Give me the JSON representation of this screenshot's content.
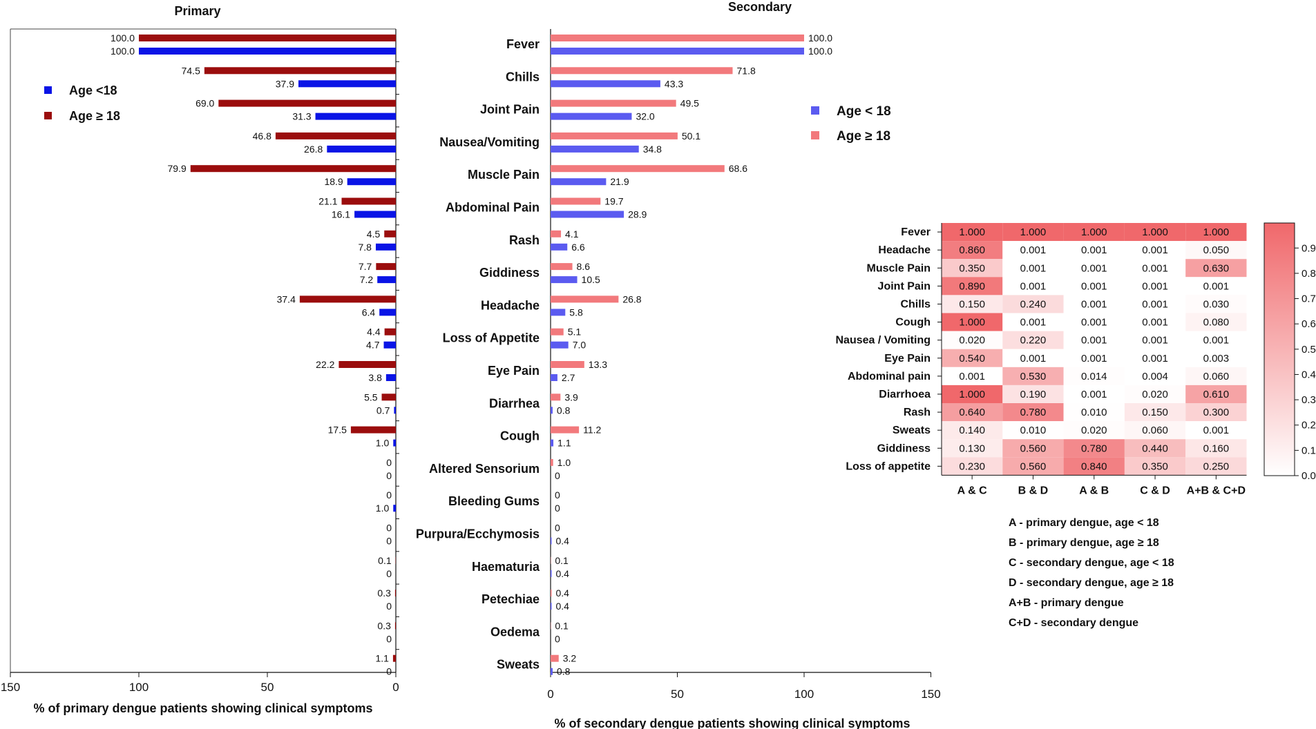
{
  "chart_data": [
    {
      "type": "bar",
      "title": "Primary",
      "xlabel": "% of primary dengue patients showing clinical symptoms",
      "orientation": "horizontal-reversed",
      "xlim": [
        0,
        150
      ],
      "ticks": [
        "150",
        "100",
        "50",
        "0"
      ],
      "legend": [
        {
          "name": "Age <18",
          "color": "#0a14e6"
        },
        {
          "name": "Age ≥ 18",
          "color": "#9b0d0d"
        }
      ],
      "categories": [
        "Fever",
        "Chills",
        "Joint Pain",
        "Nausea/Vomiting",
        "Muscle Pain",
        "Abdominal Pain",
        "Rash",
        "Giddiness",
        "Headache",
        "Loss of Appetite",
        "Eye Pain",
        "Diarrhea",
        "Cough",
        "Altered Sensorium",
        "Bleeding Gums",
        "Purpura/Ecchymosis",
        "Haematuria",
        "Petechiae",
        "Oedema",
        "Sweats"
      ],
      "series": [
        {
          "name": "Age ≥ 18",
          "values": [
            100.0,
            74.5,
            69.0,
            46.8,
            79.9,
            21.1,
            4.5,
            7.7,
            37.4,
            4.4,
            22.2,
            5.5,
            17.5,
            0,
            0,
            0,
            0.1,
            0.3,
            0.3,
            1.1
          ],
          "labels": [
            "100.0",
            "74.5",
            "69.0",
            "46.8",
            "79.9",
            "21.1",
            "4.5",
            "7.7",
            "37.4",
            "4.4",
            "22.2",
            "5.5",
            "17.5",
            "0",
            "0",
            "0",
            "0.1",
            "0.3",
            "0.3",
            "1.1"
          ]
        },
        {
          "name": "Age <18",
          "values": [
            100.0,
            37.9,
            31.3,
            26.8,
            18.9,
            16.1,
            7.8,
            7.2,
            6.4,
            4.7,
            3.8,
            0.7,
            1.0,
            0,
            1.0,
            0,
            0,
            0,
            0,
            0
          ],
          "labels": [
            "100.0",
            "37.9",
            "31.3",
            "26.8",
            "18.9",
            "16.1",
            "7.8",
            "7.2",
            "6.4",
            "4.7",
            "3.8",
            "0.7",
            "1.0",
            "0",
            "1.0",
            "0",
            "0",
            "0",
            "0",
            "0"
          ]
        }
      ]
    },
    {
      "type": "bar",
      "title": "Secondary",
      "xlabel": "% of secondary dengue patients showing clinical symptoms",
      "orientation": "horizontal",
      "xlim": [
        0,
        150
      ],
      "ticks": [
        "0",
        "50",
        "100",
        "150"
      ],
      "legend": [
        {
          "name": "Age < 18",
          "color": "#5b5bf0"
        },
        {
          "name": "Age ≥ 18",
          "color": "#f2797c"
        }
      ],
      "categories": [
        "Fever",
        "Chills",
        "Joint Pain",
        "Nausea/Vomiting",
        "Muscle Pain",
        "Abdominal Pain",
        "Rash",
        "Giddiness",
        "Headache",
        "Loss of Appetite",
        "Eye Pain",
        "Diarrhea",
        "Cough",
        "Altered Sensorium",
        "Bleeding Gums",
        "Purpura/Ecchymosis",
        "Haematuria",
        "Petechiae",
        "Oedema",
        "Sweats"
      ],
      "series": [
        {
          "name": "Age ≥ 18",
          "values": [
            100.0,
            71.8,
            49.5,
            50.1,
            68.6,
            19.7,
            4.1,
            8.6,
            26.8,
            5.1,
            13.3,
            3.9,
            11.2,
            1.0,
            0,
            0,
            0.1,
            0.4,
            0.1,
            3.2
          ],
          "labels": [
            "100.0",
            "71.8",
            "49.5",
            "50.1",
            "68.6",
            "19.7",
            "4.1",
            "8.6",
            "26.8",
            "5.1",
            "13.3",
            "3.9",
            "11.2",
            "1.0",
            "0",
            "0",
            "0.1",
            "0.4",
            "0.1",
            "3.2"
          ]
        },
        {
          "name": "Age < 18",
          "values": [
            100.0,
            43.3,
            32.0,
            34.8,
            21.9,
            28.9,
            6.6,
            10.5,
            5.8,
            7.0,
            2.7,
            0.8,
            1.1,
            0,
            0,
            0.4,
            0.4,
            0.4,
            0,
            0.8
          ],
          "labels": [
            "100.0",
            "43.3",
            "32.0",
            "34.8",
            "21.9",
            "28.9",
            "6.6",
            "10.5",
            "5.8",
            "7.0",
            "2.7",
            "0.8",
            "1.1",
            "0",
            "0",
            "0.4",
            "0.4",
            "0.4",
            "0",
            "0.8"
          ]
        }
      ]
    },
    {
      "type": "heatmap",
      "rows": [
        "Fever",
        "Headache",
        "Muscle Pain",
        "Joint Pain",
        "Chills",
        "Cough",
        "Nausea / Vomiting",
        "Eye Pain",
        "Abdominal pain",
        "Diarrhoea",
        "Rash",
        "Sweats",
        "Giddiness",
        "Loss of appetite"
      ],
      "columns": [
        "A & C",
        "B & D",
        "A & B",
        "C & D",
        "A+B & C+D"
      ],
      "values": [
        [
          "1.000",
          "1.000",
          "1.000",
          "1.000",
          "1.000"
        ],
        [
          "0.860",
          "0.001",
          "0.001",
          "0.001",
          "0.050"
        ],
        [
          "0.350",
          "0.001",
          "0.001",
          "0.001",
          "0.630"
        ],
        [
          "0.890",
          "0.001",
          "0.001",
          "0.001",
          "0.001"
        ],
        [
          "0.150",
          "0.240",
          "0.001",
          "0.001",
          "0.030"
        ],
        [
          "1.000",
          "0.001",
          "0.001",
          "0.001",
          "0.080"
        ],
        [
          "0.020",
          "0.220",
          "0.001",
          "0.001",
          "0.001"
        ],
        [
          "0.540",
          "0.001",
          "0.001",
          "0.001",
          "0.003"
        ],
        [
          "0.001",
          "0.530",
          "0.014",
          "0.004",
          "0.060"
        ],
        [
          "1.000",
          "0.190",
          "0.001",
          "0.020",
          "0.610"
        ],
        [
          "0.640",
          "0.780",
          "0.010",
          "0.150",
          "0.300"
        ],
        [
          "0.140",
          "0.010",
          "0.020",
          "0.060",
          "0.001"
        ],
        [
          "0.130",
          "0.560",
          "0.780",
          "0.440",
          "0.160"
        ],
        [
          "0.230",
          "0.560",
          "0.840",
          "0.350",
          "0.250"
        ]
      ],
      "scale_min": 0.001,
      "scale_max": 1.0,
      "scale_ticks": [
        "0.901",
        "0.801",
        "0.701",
        "0.601",
        "0.501",
        "0.401",
        "0.301",
        "0.201",
        "0.101",
        "0.001"
      ],
      "color_low": "#ffffff",
      "color_high": "#f0686b",
      "key": [
        "A - primary dengue, age < 18",
        "B - primary dengue, age ≥ 18",
        "C - secondary dengue, age < 18",
        "D - secondary dengue, age ≥ 18",
        "A+B - primary dengue",
        "C+D - secondary dengue"
      ]
    }
  ]
}
